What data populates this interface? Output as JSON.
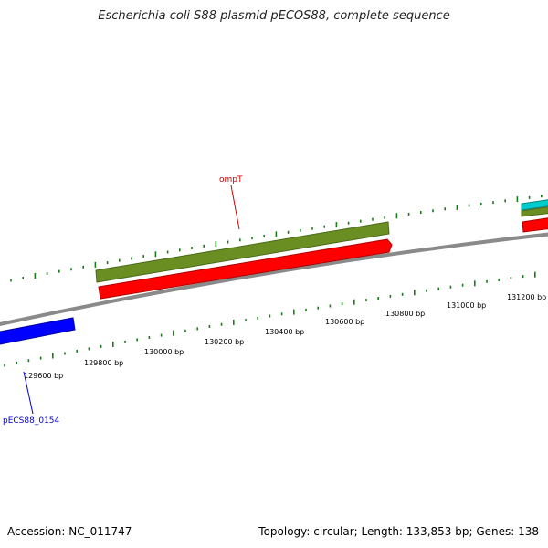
{
  "title": "Escherichia coli S88 plasmid pECOS88, complete sequence",
  "footer": {
    "accession": "Accession: NC_011747",
    "summary": "Topology: circular; Length: 133,853 bp; Genes: 138"
  },
  "colors": {
    "backbone": "#8a8a8a",
    "tick": "#1a7a1a",
    "gene_olive": "#6b8e23",
    "gene_red": "#ff0000",
    "gene_blue": "#0000ff",
    "gene_cyan": "#00cccc",
    "label_red": "#cc0000",
    "label_blue": "#0000cc"
  },
  "ticks": [
    {
      "label": "129600 bp"
    },
    {
      "label": "129800 bp"
    },
    {
      "label": "130000 bp"
    },
    {
      "label": "130200 bp"
    },
    {
      "label": "130400 bp"
    },
    {
      "label": "130600 bp"
    },
    {
      "label": "130800 bp"
    },
    {
      "label": "131000 bp"
    },
    {
      "label": "131200 bp"
    }
  ],
  "genes": [
    {
      "name": "ompT",
      "color": "olive-red",
      "strand": "both"
    },
    {
      "name": "pECS88_0154",
      "color": "blue",
      "strand": "minus"
    }
  ]
}
